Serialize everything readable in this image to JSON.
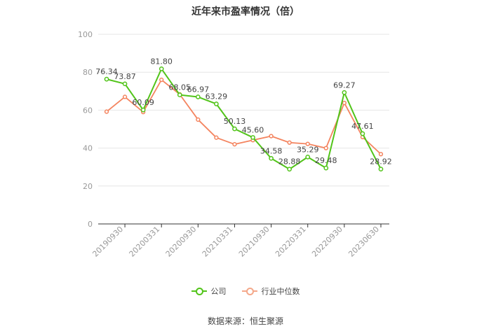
{
  "chart_data": {
    "type": "line",
    "title": "近年来市盈率情况（倍）",
    "ylim": [
      0,
      100
    ],
    "yticks": [
      0,
      20,
      40,
      60,
      80,
      100
    ],
    "x_tick_labels": [
      "20190930",
      "20200331",
      "20200930",
      "20210331",
      "20210930",
      "20220331",
      "20220930",
      "20230630"
    ],
    "point_count": 16,
    "tick_indices": [
      0,
      2,
      4,
      6,
      8,
      10,
      12,
      14
    ],
    "series": [
      {
        "name": "公司",
        "color": "#52c41a",
        "values": [
          76.34,
          73.87,
          60.09,
          81.8,
          68.05,
          66.97,
          63.29,
          50.13,
          45.6,
          34.58,
          28.88,
          35.29,
          29.48,
          69.27,
          47.61,
          28.92
        ],
        "labels": [
          "76.34",
          "73.87",
          "60.09",
          "81.80",
          "68.05",
          "66.97",
          "63.29",
          "50.13",
          "45.60",
          "34.58",
          "28.88",
          "35.29",
          "29.48",
          "69.27",
          "47.61",
          "28.92"
        ]
      },
      {
        "name": "行业中位数",
        "color": "#f4845f",
        "values": [
          59.2,
          67.0,
          59.0,
          76.0,
          68.3,
          55.0,
          45.5,
          42.0,
          44.2,
          46.3,
          42.9,
          42.2,
          40.0,
          63.8,
          45.8,
          36.8
        ]
      }
    ],
    "legend_position": "bottom",
    "grid": true,
    "source": "数据来源：恒生聚源"
  }
}
